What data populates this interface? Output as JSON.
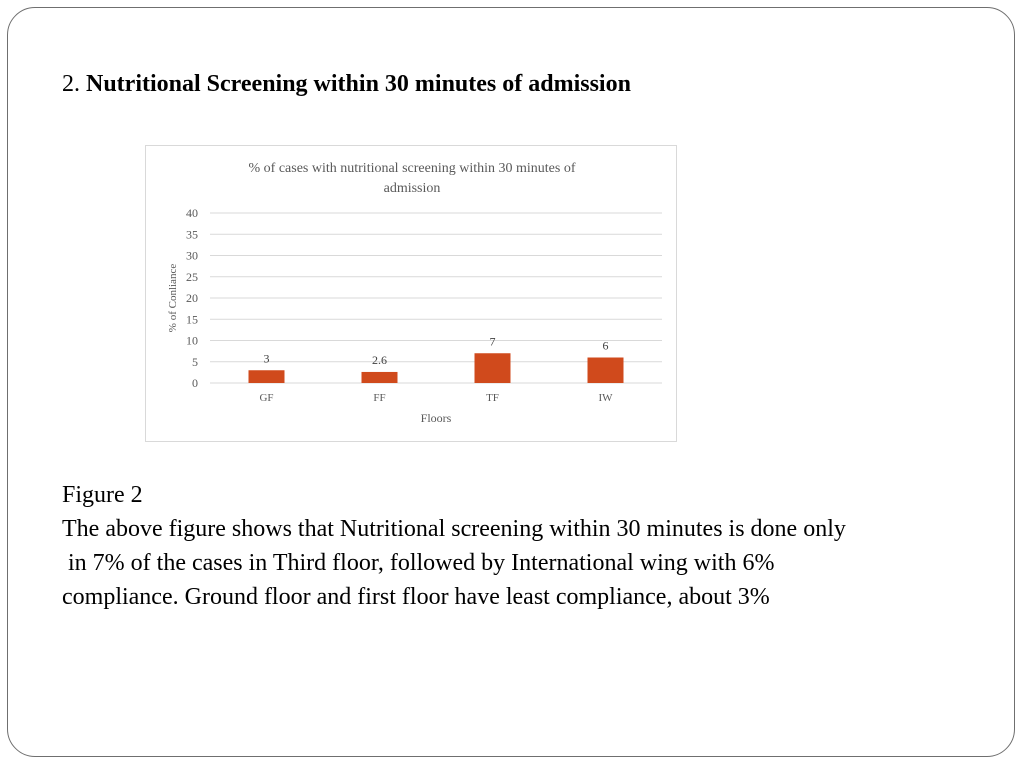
{
  "slide": {
    "heading_number": "2.",
    "heading_text": "Nutritional Screening within 30 minutes of admission",
    "figure_label": "Figure 2",
    "description_lines": [
      "The above figure shows that Nutritional screening within 30 minutes is done only",
      " in 7% of the cases in Third floor, followed by International wing with 6%",
      "compliance. Ground floor and first floor have least compliance, about 3%"
    ]
  },
  "chart_data": {
    "type": "bar",
    "title_lines": [
      "% of cases with nutritional screening within 30 minutes of",
      "admission"
    ],
    "categories": [
      "GF",
      "FF",
      "TF",
      "IW"
    ],
    "values": [
      3,
      2.6,
      7,
      6
    ],
    "data_labels": [
      "3",
      "2.6",
      "7",
      "6"
    ],
    "xlabel": "Floors",
    "ylabel": "% of Conliance",
    "ylim": [
      0,
      40
    ],
    "yticks": [
      0,
      5,
      10,
      15,
      20,
      25,
      30,
      35,
      40
    ],
    "grid": true,
    "bar_color": "#D04A1C"
  }
}
